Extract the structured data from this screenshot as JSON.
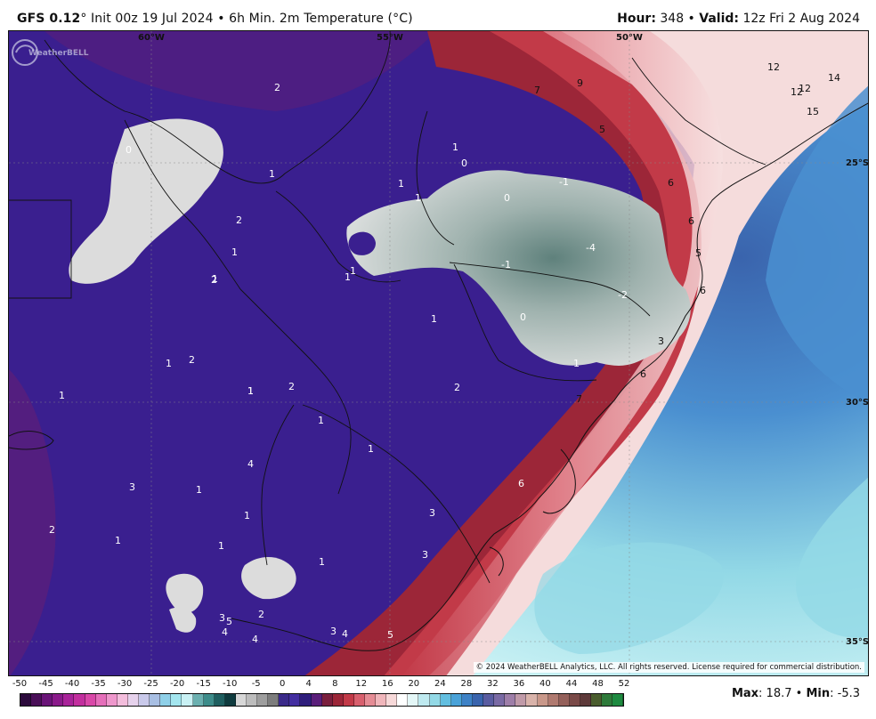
{
  "header": {
    "model": "GFS 0.12",
    "model_suffix": "° Init 00z 19 Jul 2024 • 6h Min. 2m Temperature (°C)",
    "hour_label": "Hour:",
    "hour_value": "348",
    "valid_sep": " • ",
    "valid_label": "Valid:",
    "valid_value": "12z Fri 2 Aug 2024"
  },
  "map": {
    "longitude_labels": [
      "60°W",
      "55°W",
      "50°W"
    ],
    "latitude_labels": [
      "25°S",
      "30°S",
      "35°S"
    ],
    "value_labels": [
      {
        "text": "2"
      },
      {
        "text": "0"
      },
      {
        "text": "1"
      },
      {
        "text": "1"
      },
      {
        "text": "1"
      },
      {
        "text": "2"
      },
      {
        "text": "1"
      },
      {
        "text": "1"
      },
      {
        "text": "0"
      },
      {
        "text": "1"
      },
      {
        "text": "0"
      },
      {
        "text": "-1"
      },
      {
        "text": "-4"
      },
      {
        "text": "-1"
      },
      {
        "text": "-2"
      },
      {
        "text": "0"
      },
      {
        "text": "1"
      },
      {
        "text": "1"
      },
      {
        "text": "1"
      },
      {
        "text": "2"
      },
      {
        "text": "1"
      },
      {
        "text": "2"
      },
      {
        "text": "1"
      },
      {
        "text": "2"
      },
      {
        "text": "1"
      },
      {
        "text": "1"
      },
      {
        "text": "1"
      },
      {
        "text": "4"
      },
      {
        "text": "1"
      },
      {
        "text": "3"
      },
      {
        "text": "1"
      },
      {
        "text": "2"
      },
      {
        "text": "2"
      },
      {
        "text": "1"
      },
      {
        "text": "1"
      },
      {
        "text": "1"
      },
      {
        "text": "3"
      },
      {
        "text": "3"
      },
      {
        "text": "1"
      },
      {
        "text": "3"
      },
      {
        "text": "5"
      },
      {
        "text": "2"
      },
      {
        "text": "4"
      },
      {
        "text": "4"
      },
      {
        "text": "3"
      },
      {
        "text": "4"
      },
      {
        "text": "5"
      },
      {
        "text": "6"
      },
      {
        "text": "7"
      },
      {
        "text": "9"
      },
      {
        "text": "5"
      },
      {
        "text": "6"
      },
      {
        "text": "6"
      },
      {
        "text": "5"
      },
      {
        "text": "6"
      },
      {
        "text": "3"
      },
      {
        "text": "6"
      },
      {
        "text": "7"
      },
      {
        "text": "12"
      },
      {
        "text": "12"
      },
      {
        "text": "12"
      },
      {
        "text": "14"
      },
      {
        "text": "15"
      },
      {
        "text": "1"
      }
    ],
    "copyright": "© 2024 WeatherBELL Analytics, LLC. All rights reserved. License required for commercial distribution.",
    "logo_text": "WeatherBELL",
    "colors": {
      "cold_deep": "#3a1f8f",
      "cold_mid": "#5b2a9a",
      "maroon": "#7a1f3d",
      "red": "#c23a48",
      "pink": "#e8a9b0",
      "snow": "#dcdcdc",
      "teal_gray": "#7f9b97",
      "ocean_blue": "#4a8fd0",
      "ocean_cyan": "#bfeaf0"
    }
  },
  "colorbar": {
    "ticks": [
      "-50",
      "-45",
      "-40",
      "-35",
      "-30",
      "-25",
      "-20",
      "-15",
      "-10",
      "-5",
      "0",
      "4",
      "8",
      "12",
      "16",
      "20",
      "24",
      "28",
      "32",
      "36",
      "40",
      "44",
      "48",
      "52"
    ],
    "colors": [
      "#2c0a3c",
      "#4a0f58",
      "#6a1478",
      "#8a1a8a",
      "#a82399",
      "#c22f9e",
      "#d948a8",
      "#e56fba",
      "#ee97cc",
      "#f3bddc",
      "#e6d2ec",
      "#c9c9ea",
      "#a8bfe3",
      "#8fd0e8",
      "#a4e6ef",
      "#c9f1f4",
      "#6bb0b0",
      "#3d8c8a",
      "#1f5f60",
      "#0f3b3e",
      "#d7d7d7",
      "#bdbdbd",
      "#9e9e9e",
      "#7d7d7d",
      "#3b2a8a",
      "#432ea0",
      "#2f1e7c",
      "#5a1e7a",
      "#7a1f3d",
      "#9c2638",
      "#c23a48",
      "#d8606e",
      "#e58c95",
      "#f0b6bb",
      "#f7d9d9",
      "#ffffff",
      "#e4f7f7",
      "#bfeaf0",
      "#93d9e6",
      "#63bfe0",
      "#4aa2d8",
      "#3e82c6",
      "#3a64ad",
      "#5a5ca0",
      "#7a6aa4",
      "#9e7ea8",
      "#c09aa8",
      "#d9b3aa",
      "#c9988a",
      "#b07a70",
      "#94605a",
      "#7a4a48",
      "#5e3a3a",
      "#4a5d2e",
      "#2e7a3a",
      "#1e8a40"
    ]
  },
  "stats": {
    "max_label": "Max",
    "max_value": ": 18.7",
    "sep": " • ",
    "min_label": "Min",
    "min_value": ": -5.3"
  }
}
